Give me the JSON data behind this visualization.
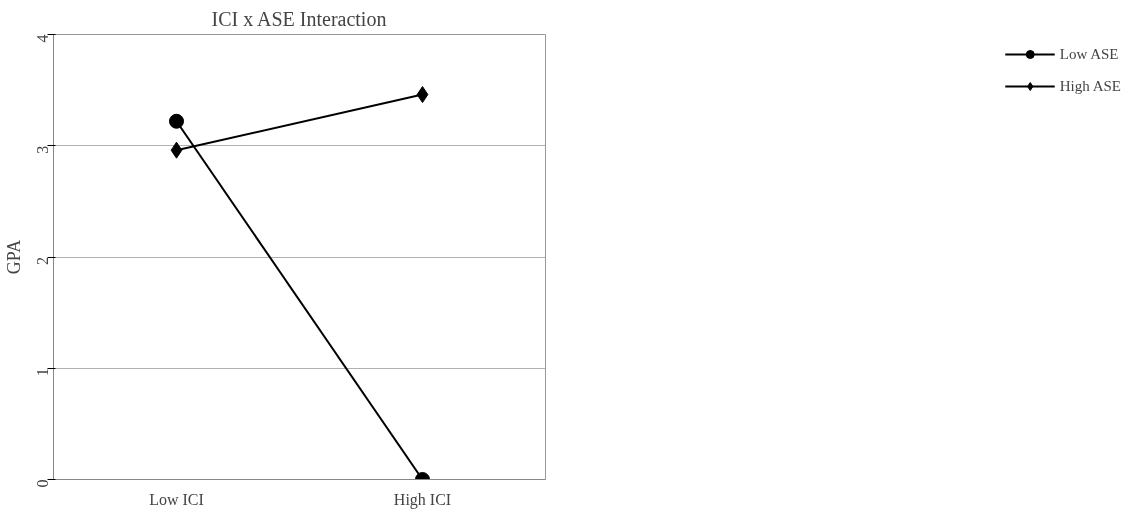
{
  "chart_data": {
    "type": "line",
    "title": "ICI x ASE Interaction",
    "ylabel": "GPA",
    "categories": [
      "Low ICI",
      "High ICI"
    ],
    "series": [
      {
        "name": "Low ASE",
        "color": "#000000",
        "marker": "circle",
        "values": [
          3.22,
          0
        ]
      },
      {
        "name": "High ASE",
        "color": "#000000",
        "marker": "diamond",
        "values": [
          2.96,
          3.46
        ]
      }
    ],
    "ylim": [
      0,
      4
    ],
    "yticks": [
      0,
      1,
      2,
      3,
      4
    ],
    "grid": "y",
    "legend": "right",
    "line_style": "solid"
  }
}
